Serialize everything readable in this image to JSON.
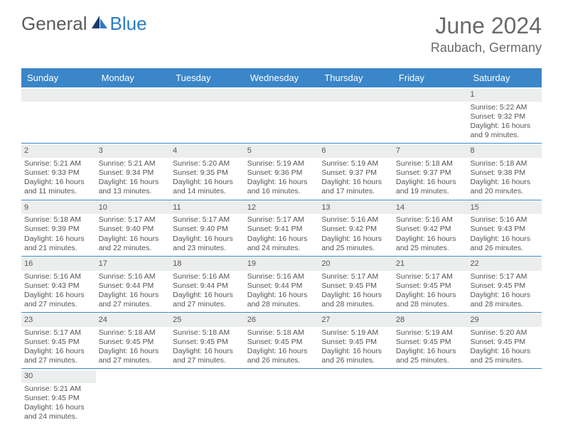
{
  "brand": {
    "word1": "General",
    "word2": "Blue"
  },
  "title": "June 2024",
  "location": "Raubach, Germany",
  "colors": {
    "header_bg": "#3a86c8",
    "header_text": "#ffffff",
    "rule": "#3a86c8",
    "daynum_bg": "#eceded",
    "text": "#555555",
    "logo_gray": "#5a5a5a",
    "logo_blue": "#2b7ac2"
  },
  "day_names": [
    "Sunday",
    "Monday",
    "Tuesday",
    "Wednesday",
    "Thursday",
    "Friday",
    "Saturday"
  ],
  "weeks": [
    [
      {
        "n": "",
        "lines": []
      },
      {
        "n": "",
        "lines": []
      },
      {
        "n": "",
        "lines": []
      },
      {
        "n": "",
        "lines": []
      },
      {
        "n": "",
        "lines": []
      },
      {
        "n": "",
        "lines": []
      },
      {
        "n": "1",
        "lines": [
          "Sunrise: 5:22 AM",
          "Sunset: 9:32 PM",
          "Daylight: 16 hours",
          "and 9 minutes."
        ]
      }
    ],
    [
      {
        "n": "2",
        "lines": [
          "Sunrise: 5:21 AM",
          "Sunset: 9:33 PM",
          "Daylight: 16 hours",
          "and 11 minutes."
        ]
      },
      {
        "n": "3",
        "lines": [
          "Sunrise: 5:21 AM",
          "Sunset: 9:34 PM",
          "Daylight: 16 hours",
          "and 13 minutes."
        ]
      },
      {
        "n": "4",
        "lines": [
          "Sunrise: 5:20 AM",
          "Sunset: 9:35 PM",
          "Daylight: 16 hours",
          "and 14 minutes."
        ]
      },
      {
        "n": "5",
        "lines": [
          "Sunrise: 5:19 AM",
          "Sunset: 9:36 PM",
          "Daylight: 16 hours",
          "and 16 minutes."
        ]
      },
      {
        "n": "6",
        "lines": [
          "Sunrise: 5:19 AM",
          "Sunset: 9:37 PM",
          "Daylight: 16 hours",
          "and 17 minutes."
        ]
      },
      {
        "n": "7",
        "lines": [
          "Sunrise: 5:18 AM",
          "Sunset: 9:37 PM",
          "Daylight: 16 hours",
          "and 19 minutes."
        ]
      },
      {
        "n": "8",
        "lines": [
          "Sunrise: 5:18 AM",
          "Sunset: 9:38 PM",
          "Daylight: 16 hours",
          "and 20 minutes."
        ]
      }
    ],
    [
      {
        "n": "9",
        "lines": [
          "Sunrise: 5:18 AM",
          "Sunset: 9:39 PM",
          "Daylight: 16 hours",
          "and 21 minutes."
        ]
      },
      {
        "n": "10",
        "lines": [
          "Sunrise: 5:17 AM",
          "Sunset: 9:40 PM",
          "Daylight: 16 hours",
          "and 22 minutes."
        ]
      },
      {
        "n": "11",
        "lines": [
          "Sunrise: 5:17 AM",
          "Sunset: 9:40 PM",
          "Daylight: 16 hours",
          "and 23 minutes."
        ]
      },
      {
        "n": "12",
        "lines": [
          "Sunrise: 5:17 AM",
          "Sunset: 9:41 PM",
          "Daylight: 16 hours",
          "and 24 minutes."
        ]
      },
      {
        "n": "13",
        "lines": [
          "Sunrise: 5:16 AM",
          "Sunset: 9:42 PM",
          "Daylight: 16 hours",
          "and 25 minutes."
        ]
      },
      {
        "n": "14",
        "lines": [
          "Sunrise: 5:16 AM",
          "Sunset: 9:42 PM",
          "Daylight: 16 hours",
          "and 25 minutes."
        ]
      },
      {
        "n": "15",
        "lines": [
          "Sunrise: 5:16 AM",
          "Sunset: 9:43 PM",
          "Daylight: 16 hours",
          "and 26 minutes."
        ]
      }
    ],
    [
      {
        "n": "16",
        "lines": [
          "Sunrise: 5:16 AM",
          "Sunset: 9:43 PM",
          "Daylight: 16 hours",
          "and 27 minutes."
        ]
      },
      {
        "n": "17",
        "lines": [
          "Sunrise: 5:16 AM",
          "Sunset: 9:44 PM",
          "Daylight: 16 hours",
          "and 27 minutes."
        ]
      },
      {
        "n": "18",
        "lines": [
          "Sunrise: 5:16 AM",
          "Sunset: 9:44 PM",
          "Daylight: 16 hours",
          "and 27 minutes."
        ]
      },
      {
        "n": "19",
        "lines": [
          "Sunrise: 5:16 AM",
          "Sunset: 9:44 PM",
          "Daylight: 16 hours",
          "and 28 minutes."
        ]
      },
      {
        "n": "20",
        "lines": [
          "Sunrise: 5:17 AM",
          "Sunset: 9:45 PM",
          "Daylight: 16 hours",
          "and 28 minutes."
        ]
      },
      {
        "n": "21",
        "lines": [
          "Sunrise: 5:17 AM",
          "Sunset: 9:45 PM",
          "Daylight: 16 hours",
          "and 28 minutes."
        ]
      },
      {
        "n": "22",
        "lines": [
          "Sunrise: 5:17 AM",
          "Sunset: 9:45 PM",
          "Daylight: 16 hours",
          "and 28 minutes."
        ]
      }
    ],
    [
      {
        "n": "23",
        "lines": [
          "Sunrise: 5:17 AM",
          "Sunset: 9:45 PM",
          "Daylight: 16 hours",
          "and 27 minutes."
        ]
      },
      {
        "n": "24",
        "lines": [
          "Sunrise: 5:18 AM",
          "Sunset: 9:45 PM",
          "Daylight: 16 hours",
          "and 27 minutes."
        ]
      },
      {
        "n": "25",
        "lines": [
          "Sunrise: 5:18 AM",
          "Sunset: 9:45 PM",
          "Daylight: 16 hours",
          "and 27 minutes."
        ]
      },
      {
        "n": "26",
        "lines": [
          "Sunrise: 5:18 AM",
          "Sunset: 9:45 PM",
          "Daylight: 16 hours",
          "and 26 minutes."
        ]
      },
      {
        "n": "27",
        "lines": [
          "Sunrise: 5:19 AM",
          "Sunset: 9:45 PM",
          "Daylight: 16 hours",
          "and 26 minutes."
        ]
      },
      {
        "n": "28",
        "lines": [
          "Sunrise: 5:19 AM",
          "Sunset: 9:45 PM",
          "Daylight: 16 hours",
          "and 25 minutes."
        ]
      },
      {
        "n": "29",
        "lines": [
          "Sunrise: 5:20 AM",
          "Sunset: 9:45 PM",
          "Daylight: 16 hours",
          "and 25 minutes."
        ]
      }
    ],
    [
      {
        "n": "30",
        "lines": [
          "Sunrise: 5:21 AM",
          "Sunset: 9:45 PM",
          "Daylight: 16 hours",
          "and 24 minutes."
        ]
      },
      {
        "n": "",
        "lines": []
      },
      {
        "n": "",
        "lines": []
      },
      {
        "n": "",
        "lines": []
      },
      {
        "n": "",
        "lines": []
      },
      {
        "n": "",
        "lines": []
      },
      {
        "n": "",
        "lines": []
      }
    ]
  ]
}
